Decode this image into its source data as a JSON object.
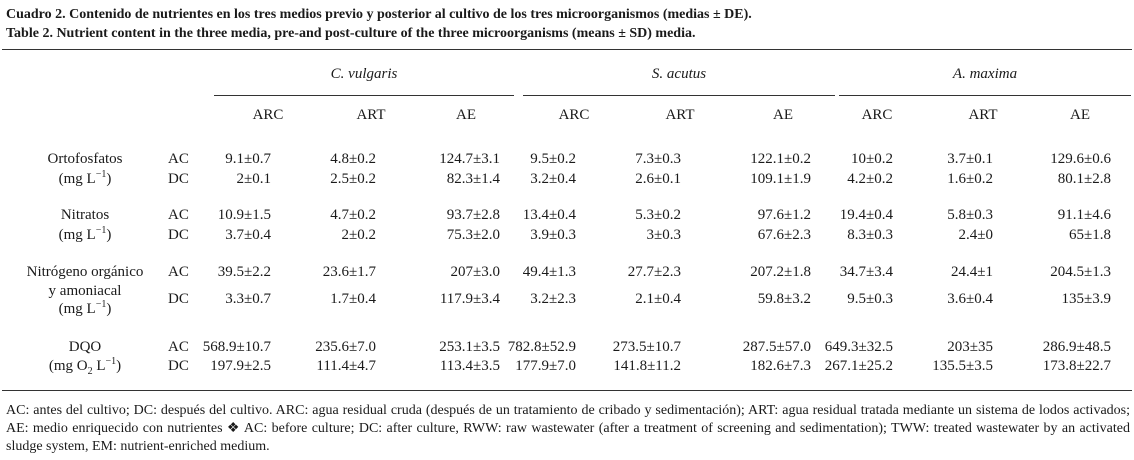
{
  "caption": {
    "es": "Cuadro 2. Contenido de nutrientes en los tres medios previo y posterior al cultivo de los tres microorganismos (medias ± DE).",
    "en": "Table 2. Nutrient content in the three media, pre-and post-culture of the three microorganisms (means ± SD) media."
  },
  "groups": [
    "C. vulgaris",
    "S. acutus",
    "A. maxima"
  ],
  "subheaders": [
    "ARC",
    "ART",
    "AE",
    "ARC",
    "ART",
    "AE",
    "ARC",
    "ART",
    "AE"
  ],
  "rows": [
    {
      "param": "Ortofosfatos",
      "unit": "(mg L⁻¹)",
      "cond1": "AC",
      "cond2": "DC",
      "ac": [
        "9.1±0.7",
        "4.8±0.2",
        "124.7±3.1",
        "9.5±0.2",
        "7.3±0.3",
        "122.1±0.2",
        "10±0.2",
        "3.7±0.1",
        "129.6±0.6"
      ],
      "dc": [
        "2±0.1",
        "2.5±0.2",
        "82.3±1.4",
        "3.2±0.4",
        "2.6±0.1",
        "109.1±1.9",
        "4.2±0.2",
        "1.6±0.2",
        "80.1±2.8"
      ]
    },
    {
      "param": "Nitratos",
      "unit": "(mg L⁻¹)",
      "cond1": "AC",
      "cond2": "DC",
      "ac": [
        "10.9±1.5",
        "4.7±0.2",
        "93.7±2.8",
        "13.4±0.4",
        "5.3±0.2",
        "97.6±1.2",
        "19.4±0.4",
        "5.8±0.3",
        "91.1±4.6"
      ],
      "dc": [
        "3.7±0.4",
        "2±0.2",
        "75.3±2.0",
        "3.9±0.3",
        "3±0.3",
        "67.6±2.3",
        "8.3±0.3",
        "2.4±0",
        "65±1.8"
      ]
    },
    {
      "param": "Nitrógeno orgánico",
      "param2": "y amoniacal",
      "unit": "(mg L⁻¹)",
      "cond1": "AC",
      "cond2": "DC",
      "ac": [
        "39.5±2.2",
        "23.6±1.7",
        "207±3.0",
        "49.4±1.3",
        "27.7±2.3",
        "207.2±1.8",
        "34.7±3.4",
        "24.4±1",
        "204.5±1.3"
      ],
      "dc": [
        "3.3±0.7",
        "1.7±0.4",
        "117.9±3.4",
        "3.2±2.3",
        "2.1±0.4",
        "59.8±3.2",
        "9.5±0.3",
        "3.6±0.4",
        "135±3.9"
      ]
    },
    {
      "param": "DQO",
      "unit": "(mg O₂ L⁻¹)",
      "cond1": "AC",
      "cond2": "DC",
      "ac": [
        "568.9±10.7",
        "235.6±7.0",
        "253.1±3.5",
        "782.8±52.9",
        "273.5±10.7",
        "287.5±57.0",
        "649.3±32.5",
        "203±35",
        "286.9±48.5"
      ],
      "dc": [
        "197.9±2.5",
        "111.4±4.7",
        "113.4±3.5",
        "177.9±7.0",
        "141.8±11.2",
        "182.6±7.3",
        "267.1±25.2",
        "135.5±3.5",
        "173.8±22.7"
      ]
    }
  ],
  "notes": "AC: antes del cultivo; DC: después del cultivo. ARC: agua residual cruda (después de un tratamiento de cribado y sedimentación); ART: agua residual tratada mediante un sistema de lodos activados; AE: medio enriquecido con nutrientes ❖ AC: before culture; DC: after culture, RWW: raw wastewater (after a treatment of screening and sedimentation); TWW: treated wastewater by an activated sludge system, EM: nutrient-enriched medium."
}
